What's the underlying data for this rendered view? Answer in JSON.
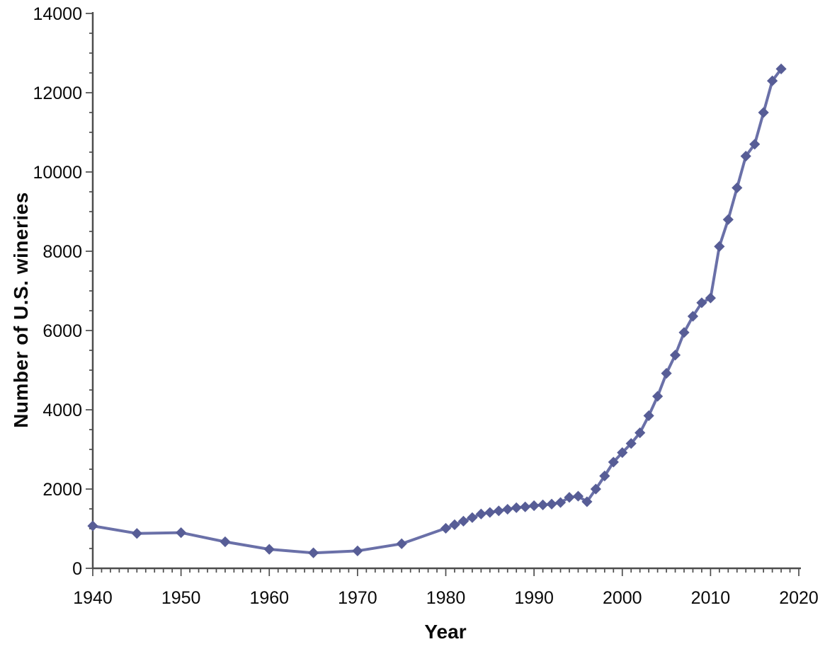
{
  "page": {
    "background_color": "#ffffff"
  },
  "chart_data": {
    "type": "line",
    "title": "",
    "xlabel": "Year",
    "ylabel": "Number of U.S. wineries",
    "xlim": [
      1940,
      2020
    ],
    "ylim": [
      0,
      14000
    ],
    "x_major_ticks": [
      1940,
      1950,
      1960,
      1970,
      1980,
      1990,
      2000,
      2010,
      2020
    ],
    "x_minor_tick_interval": 1,
    "y_major_ticks": [
      0,
      2000,
      4000,
      6000,
      8000,
      10000,
      12000,
      14000
    ],
    "y_minor_tick_interval": 500,
    "grid": false,
    "legend": false,
    "axis_color": "#4d4d4d",
    "tick_label_color": "#0a0a0a",
    "series": [
      {
        "name": "Number of U.S. wineries",
        "line_color": "#6A70A8",
        "marker_color": "#575D96",
        "marker_shape": "diamond",
        "points": [
          [
            1940,
            1070
          ],
          [
            1945,
            880
          ],
          [
            1950,
            900
          ],
          [
            1955,
            670
          ],
          [
            1960,
            480
          ],
          [
            1965,
            390
          ],
          [
            1970,
            440
          ],
          [
            1975,
            620
          ],
          [
            1980,
            1010
          ],
          [
            1981,
            1100
          ],
          [
            1982,
            1190
          ],
          [
            1983,
            1280
          ],
          [
            1984,
            1370
          ],
          [
            1985,
            1410
          ],
          [
            1986,
            1450
          ],
          [
            1987,
            1490
          ],
          [
            1988,
            1530
          ],
          [
            1989,
            1550
          ],
          [
            1990,
            1580
          ],
          [
            1991,
            1600
          ],
          [
            1992,
            1620
          ],
          [
            1993,
            1660
          ],
          [
            1994,
            1790
          ],
          [
            1995,
            1820
          ],
          [
            1996,
            1680
          ],
          [
            1997,
            2000
          ],
          [
            1998,
            2330
          ],
          [
            1999,
            2680
          ],
          [
            2000,
            2920
          ],
          [
            2001,
            3150
          ],
          [
            2002,
            3420
          ],
          [
            2003,
            3850
          ],
          [
            2004,
            4340
          ],
          [
            2005,
            4920
          ],
          [
            2006,
            5380
          ],
          [
            2007,
            5950
          ],
          [
            2008,
            6360
          ],
          [
            2009,
            6700
          ],
          [
            2010,
            6820
          ],
          [
            2011,
            8120
          ],
          [
            2012,
            8800
          ],
          [
            2013,
            9600
          ],
          [
            2014,
            10400
          ],
          [
            2015,
            10700
          ],
          [
            2016,
            11500
          ],
          [
            2017,
            12300
          ],
          [
            2018,
            12600
          ]
        ]
      }
    ]
  }
}
